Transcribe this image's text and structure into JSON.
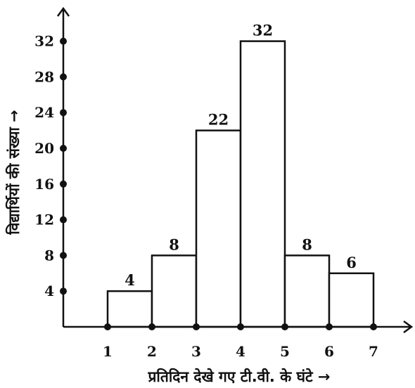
{
  "chart_data": {
    "type": "bar",
    "title": "",
    "xlabel": "प्रतिदिन देखे गए टी.वी. के घंटे →",
    "ylabel": "विद्यार्थियों की संख्या →",
    "x_ticks": [
      "1",
      "2",
      "3",
      "4",
      "5",
      "6",
      "7"
    ],
    "y_ticks": [
      "4",
      "8",
      "12",
      "16",
      "20",
      "24",
      "28",
      "32"
    ],
    "bins": [
      [
        1,
        2
      ],
      [
        2,
        3
      ],
      [
        3,
        4
      ],
      [
        4,
        5
      ],
      [
        5,
        6
      ],
      [
        6,
        7
      ]
    ],
    "values": [
      4,
      8,
      22,
      32,
      8,
      6
    ],
    "data_labels": [
      "4",
      "8",
      "22",
      "32",
      "8",
      "6"
    ],
    "xlim": [
      0,
      7.5
    ],
    "ylim": [
      0,
      36
    ],
    "grid": false,
    "colors": {
      "axis": "#111111",
      "bar_fill": "#ffffff",
      "bar_stroke": "#111111"
    }
  }
}
